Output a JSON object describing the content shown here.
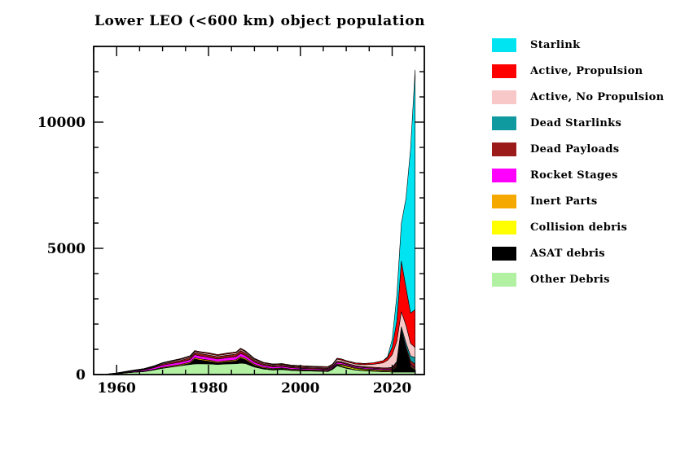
{
  "title": "Lower LEO (<600 km) object population",
  "legend": {
    "items": [
      {
        "key": "starlink",
        "label": "Starlink",
        "color": "#00e4f2"
      },
      {
        "key": "active-propulsion",
        "label": "Active, Propulsion",
        "color": "#ff0000"
      },
      {
        "key": "active-no-propulsion",
        "label": "Active, No Propulsion",
        "color": "#f8c8c8"
      },
      {
        "key": "dead-starlinks",
        "label": "Dead Starlinks",
        "color": "#0f9aa0"
      },
      {
        "key": "dead-payloads",
        "label": "Dead Payloads",
        "color": "#9b1b1b"
      },
      {
        "key": "rocket-stages",
        "label": "Rocket Stages",
        "color": "#ff00ff"
      },
      {
        "key": "inert-parts",
        "label": "Inert Parts",
        "color": "#f5a800"
      },
      {
        "key": "collision-debris",
        "label": "Collision debris",
        "color": "#ffff00"
      },
      {
        "key": "asat-debris",
        "label": "ASAT debris",
        "color": "#000000"
      },
      {
        "key": "other-debris",
        "label": "Other Debris",
        "color": "#b2f0a2"
      }
    ]
  },
  "chart_data": {
    "type": "area",
    "stacked": true,
    "title": "Lower LEO (<600 km) object population",
    "xlabel": "",
    "ylabel": "",
    "xlim": [
      1955,
      2027
    ],
    "ylim": [
      0,
      13000
    ],
    "xticks_major": [
      1960,
      1980,
      2000,
      2020
    ],
    "xticks_minor_step": 5,
    "yticks_major": [
      0,
      5000,
      10000
    ],
    "yticks_minor_step": 1000,
    "grid": false,
    "legend_position": "right",
    "x": [
      1957,
      1960,
      1963,
      1966,
      1968,
      1970,
      1972,
      1974,
      1976,
      1977,
      1978,
      1980,
      1982,
      1984,
      1986,
      1987,
      1988,
      1990,
      1992,
      1994,
      1996,
      1998,
      2000,
      2002,
      2004,
      2006,
      2007,
      2008,
      2009,
      2010,
      2012,
      2014,
      2016,
      2018,
      2019,
      2020,
      2021,
      2022,
      2023,
      2024,
      2025
    ],
    "series": [
      {
        "key": "other-debris",
        "name": "Other Debris",
        "color": "#b2f0a2",
        "values": [
          0,
          30,
          80,
          120,
          180,
          250,
          300,
          350,
          400,
          420,
          430,
          420,
          400,
          420,
          430,
          450,
          440,
          300,
          220,
          180,
          200,
          160,
          150,
          140,
          130,
          120,
          200,
          350,
          300,
          250,
          180,
          150,
          130,
          110,
          110,
          100,
          100,
          100,
          100,
          100,
          100
        ]
      },
      {
        "key": "asat-debris",
        "name": "ASAT debris",
        "color": "#000000",
        "values": [
          0,
          0,
          0,
          0,
          0,
          10,
          10,
          10,
          50,
          200,
          150,
          100,
          60,
          80,
          100,
          200,
          150,
          60,
          30,
          20,
          20,
          15,
          10,
          10,
          10,
          10,
          20,
          30,
          25,
          20,
          15,
          10,
          10,
          5,
          5,
          5,
          200,
          1500,
          800,
          200,
          50
        ]
      },
      {
        "key": "collision-debris",
        "name": "Collision debris",
        "color": "#ffff00",
        "values": [
          0,
          0,
          0,
          0,
          0,
          0,
          0,
          0,
          0,
          0,
          0,
          5,
          5,
          5,
          5,
          5,
          5,
          5,
          5,
          5,
          15,
          10,
          10,
          10,
          10,
          10,
          10,
          10,
          50,
          60,
          45,
          40,
          35,
          30,
          30,
          30,
          30,
          30,
          30,
          30,
          30
        ]
      },
      {
        "key": "inert-parts",
        "name": "Inert Parts",
        "color": "#f5a800",
        "values": [
          0,
          5,
          10,
          15,
          20,
          30,
          35,
          40,
          45,
          48,
          50,
          50,
          45,
          48,
          50,
          52,
          50,
          40,
          35,
          32,
          30,
          30,
          30,
          28,
          28,
          28,
          28,
          30,
          30,
          30,
          30,
          30,
          32,
          35,
          36,
          38,
          40,
          42,
          45,
          48,
          50
        ]
      },
      {
        "key": "rocket-stages",
        "name": "Rocket Stages",
        "color": "#ff00ff",
        "values": [
          0,
          10,
          30,
          50,
          65,
          80,
          90,
          95,
          100,
          120,
          115,
          110,
          105,
          115,
          120,
          130,
          110,
          90,
          70,
          65,
          60,
          55,
          50,
          45,
          42,
          40,
          42,
          60,
          55,
          50,
          45,
          40,
          40,
          40,
          40,
          40,
          40,
          40,
          40,
          40,
          40
        ]
      },
      {
        "key": "dead-payloads",
        "name": "Dead Payloads",
        "color": "#9b1b1b",
        "values": [
          0,
          5,
          15,
          25,
          35,
          50,
          60,
          70,
          80,
          85,
          88,
          90,
          92,
          95,
          100,
          110,
          100,
          70,
          60,
          55,
          50,
          45,
          40,
          40,
          40,
          40,
          42,
          50,
          45,
          42,
          40,
          40,
          42,
          45,
          46,
          50,
          60,
          80,
          100,
          120,
          150
        ]
      },
      {
        "key": "dead-starlinks",
        "name": "Dead Starlinks",
        "color": "#0f9aa0",
        "values": [
          0,
          0,
          0,
          0,
          0,
          0,
          0,
          0,
          0,
          0,
          0,
          0,
          0,
          0,
          0,
          0,
          0,
          0,
          0,
          0,
          0,
          0,
          0,
          0,
          0,
          0,
          0,
          0,
          0,
          0,
          0,
          0,
          0,
          0,
          0,
          20,
          50,
          100,
          150,
          200,
          250
        ]
      },
      {
        "key": "active-no-propulsion",
        "name": "Active, No Propulsion",
        "color": "#f8c8c8",
        "values": [
          0,
          5,
          10,
          15,
          20,
          30,
          35,
          38,
          40,
          42,
          44,
          50,
          48,
          50,
          52,
          55,
          50,
          40,
          35,
          32,
          30,
          30,
          30,
          30,
          30,
          32,
          35,
          80,
          70,
          60,
          60,
          80,
          120,
          200,
          300,
          500,
          800,
          600,
          700,
          500,
          400
        ]
      },
      {
        "key": "active-propulsion",
        "name": "Active, Propulsion",
        "color": "#ff0000",
        "values": [
          0,
          5,
          10,
          12,
          15,
          20,
          25,
          28,
          30,
          32,
          34,
          35,
          35,
          36,
          38,
          40,
          38,
          35,
          30,
          28,
          30,
          28,
          30,
          30,
          30,
          32,
          35,
          40,
          40,
          40,
          45,
          50,
          60,
          80,
          100,
          300,
          800,
          2000,
          1500,
          1200,
          1500
        ]
      },
      {
        "key": "starlink",
        "name": "Starlink",
        "color": "#00e4f2",
        "values": [
          0,
          0,
          0,
          0,
          0,
          0,
          0,
          0,
          0,
          0,
          0,
          0,
          0,
          0,
          0,
          0,
          0,
          0,
          0,
          0,
          0,
          0,
          0,
          0,
          0,
          0,
          0,
          0,
          0,
          0,
          0,
          0,
          0,
          0,
          50,
          300,
          1000,
          1500,
          3500,
          6500,
          9500
        ]
      }
    ]
  }
}
